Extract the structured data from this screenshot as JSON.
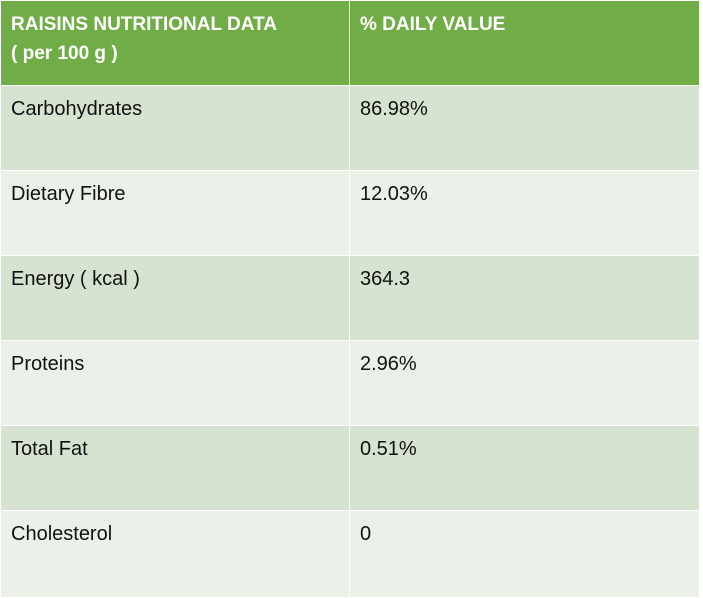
{
  "header": {
    "col1_line1": "RAISINS NUTRITIONAL DATA",
    "col1_line2": "( per 100 g )",
    "col2": "% DAILY VALUE"
  },
  "colors": {
    "header_bg": "#70ad47",
    "row_dark": "#d6e3d1",
    "row_light": "#ebf0e9"
  },
  "rows": [
    {
      "nutrient": "Carbohydrates",
      "value": "86.98%"
    },
    {
      "nutrient": "Dietary Fibre",
      "value": "12.03%"
    },
    {
      "nutrient": "Energy ( kcal )",
      "value": "364.3"
    },
    {
      "nutrient": "Proteins",
      "value": "2.96%"
    },
    {
      "nutrient": "Total Fat",
      "value": "0.51%"
    },
    {
      "nutrient": "Cholesterol",
      "value": "0"
    }
  ]
}
